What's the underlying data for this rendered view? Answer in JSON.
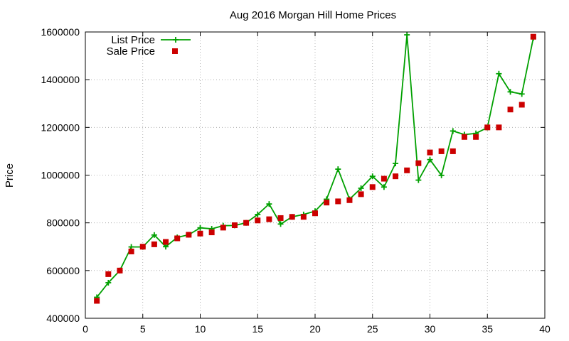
{
  "chart_data": {
    "type": "line",
    "title": "Aug 2016 Morgan Hill Home Prices",
    "xlabel": "",
    "ylabel": "Price",
    "xlim": [
      0,
      40
    ],
    "ylim": [
      400000,
      1600000
    ],
    "xticks": [
      0,
      5,
      10,
      15,
      20,
      25,
      30,
      35,
      40
    ],
    "yticks": [
      400000,
      600000,
      800000,
      1000000,
      1200000,
      1400000,
      1600000
    ],
    "grid": true,
    "legend_position": "top-left",
    "x": [
      1,
      2,
      3,
      4,
      5,
      6,
      7,
      8,
      9,
      10,
      11,
      12,
      13,
      14,
      15,
      16,
      17,
      18,
      19,
      20,
      21,
      22,
      23,
      24,
      25,
      26,
      27,
      28,
      29,
      30,
      31,
      32,
      33,
      34,
      35,
      36,
      37,
      38,
      39
    ],
    "series": [
      {
        "name": "List Price",
        "style": "linespoints",
        "color": "#00a000",
        "values": [
          488000,
          549000,
          600000,
          699000,
          699000,
          749000,
          700000,
          739000,
          750000,
          779000,
          775000,
          788000,
          789000,
          800000,
          835000,
          879000,
          795000,
          825000,
          835000,
          849000,
          899000,
          1025000,
          899000,
          945000,
          995000,
          950000,
          1049000,
          1588000,
          979000,
          1065000,
          999000,
          1185000,
          1170000,
          1175000,
          1199000,
          1425000,
          1349000,
          1340000,
          1575000
        ]
      },
      {
        "name": "Sale Price",
        "style": "points",
        "color": "#cc0000",
        "values": [
          473000,
          585000,
          600000,
          680000,
          700000,
          710000,
          720000,
          735000,
          750000,
          755000,
          760000,
          780000,
          790000,
          800000,
          810000,
          815000,
          820000,
          825000,
          825000,
          840000,
          885000,
          890000,
          895000,
          920000,
          950000,
          985000,
          995000,
          1020000,
          1050000,
          1095000,
          1100000,
          1100000,
          1160000,
          1160000,
          1200000,
          1200000,
          1275000,
          1295000,
          1580000
        ]
      }
    ]
  }
}
